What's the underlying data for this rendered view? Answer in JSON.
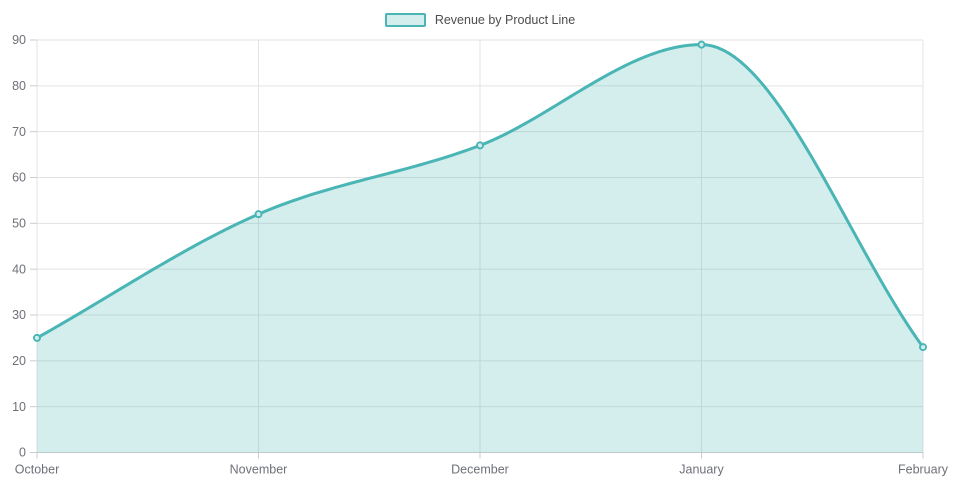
{
  "legend": {
    "label": "Revenue by Product Line"
  },
  "chart_data": {
    "type": "area",
    "title": "",
    "xlabel": "",
    "ylabel": "",
    "categories": [
      "October",
      "November",
      "December",
      "January",
      "February"
    ],
    "series": [
      {
        "name": "Revenue by Product Line",
        "values": [
          25,
          52,
          67,
          89,
          23
        ]
      }
    ],
    "ylim": [
      0,
      90
    ],
    "y_ticks": [
      0,
      10,
      20,
      30,
      40,
      50,
      60,
      70,
      80,
      90
    ],
    "grid": true,
    "smooth": true,
    "markers": "hollow-circle",
    "legend_position": "top-center",
    "colors": {
      "line": "#4ab5b5",
      "area_fill": "rgba(75,181,181,0.24)",
      "marker_fill": "#ffffff",
      "grid": "#e3e3e3",
      "axis": "#cccccc",
      "axis_label": "#6e7079",
      "legend_text": "#4d4d4d",
      "background": "#ffffff"
    }
  }
}
